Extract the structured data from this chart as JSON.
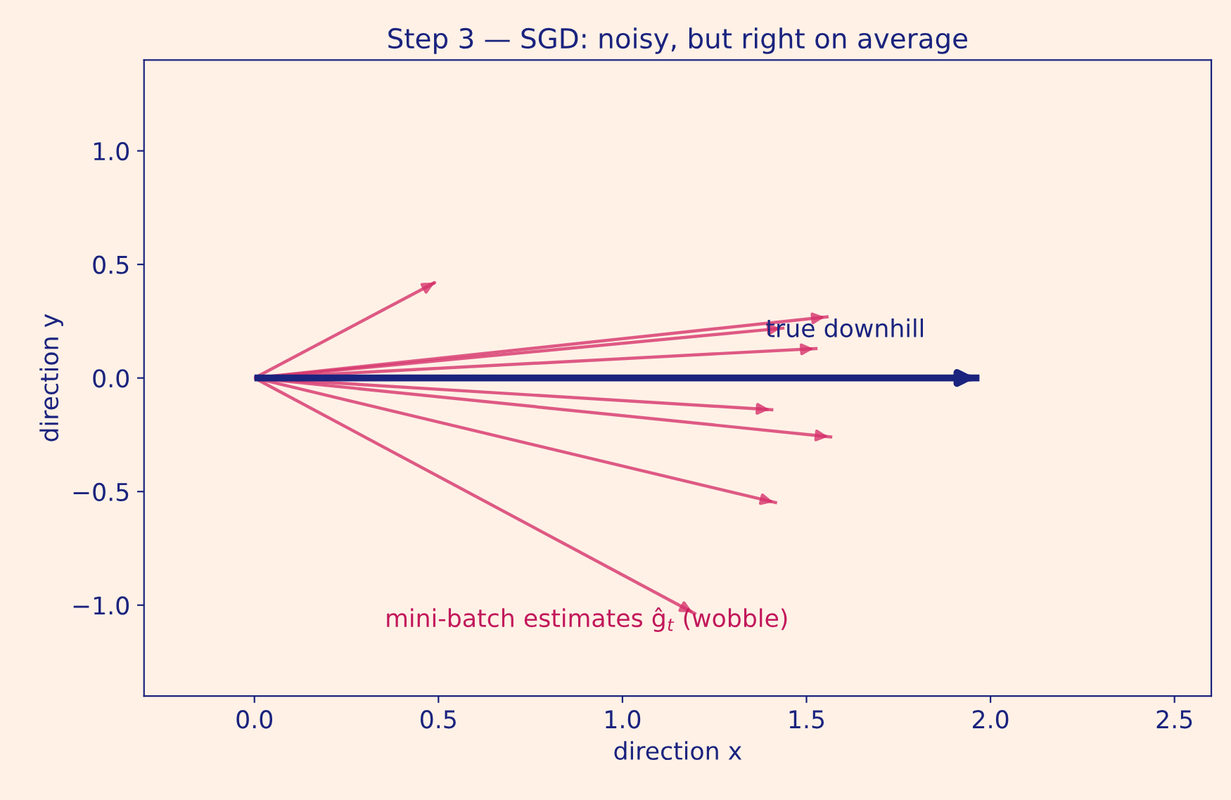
{
  "chart_data": {
    "type": "line",
    "title": "Step 3 — SGD: noisy, but right on average",
    "xlabel": "direction x",
    "ylabel": "direction y",
    "xlim": [
      -0.3,
      2.6
    ],
    "ylim": [
      -1.4,
      1.4
    ],
    "xticks": [
      {
        "value": 0,
        "label": "0.0"
      },
      {
        "value": 0.5,
        "label": "0.5"
      },
      {
        "value": 1,
        "label": "1.0"
      },
      {
        "value": 1.5,
        "label": "1.5"
      },
      {
        "value": 2,
        "label": "2.0"
      },
      {
        "value": 2.5,
        "label": "2.5"
      }
    ],
    "yticks": [
      {
        "value": -1,
        "label": "−1.0"
      },
      {
        "value": -0.5,
        "label": "−0.5"
      },
      {
        "value": 0,
        "label": "0.0"
      },
      {
        "value": 0.5,
        "label": "0.5"
      },
      {
        "value": 1,
        "label": "1.0"
      }
    ],
    "grid": false,
    "legend": false,
    "line_style": "solid",
    "series": [
      {
        "color": "#d6336c",
        "x": [
          0,
          0.49
        ],
        "values": [
          0,
          0.42
        ]
      },
      {
        "color": "#d6336c",
        "x": [
          0,
          1.56
        ],
        "values": [
          0,
          0.27
        ]
      },
      {
        "color": "#d6336c",
        "x": [
          0,
          1.44
        ],
        "values": [
          0,
          0.22
        ]
      },
      {
        "color": "#d6336c",
        "x": [
          0,
          1.53
        ],
        "values": [
          0,
          0.13
        ]
      },
      {
        "color": "#d6336c",
        "x": [
          0,
          1.41
        ],
        "values": [
          0,
          -0.14
        ]
      },
      {
        "color": "#d6336c",
        "x": [
          0,
          1.57
        ],
        "values": [
          0,
          -0.26
        ]
      },
      {
        "color": "#d6336c",
        "x": [
          0,
          1.42
        ],
        "values": [
          0,
          -0.55
        ]
      },
      {
        "color": "#d6336c",
        "x": [
          0,
          1.2
        ],
        "values": [
          0,
          -1.04
        ]
      },
      {
        "name": "true downhill",
        "color": "#1a237e",
        "x": [
          0,
          1.97
        ],
        "values": [
          0,
          0
        ]
      }
    ],
    "annotations": [
      "mini-batch estimates ĝ$_{t}$ (wobble)"
    ]
  }
}
